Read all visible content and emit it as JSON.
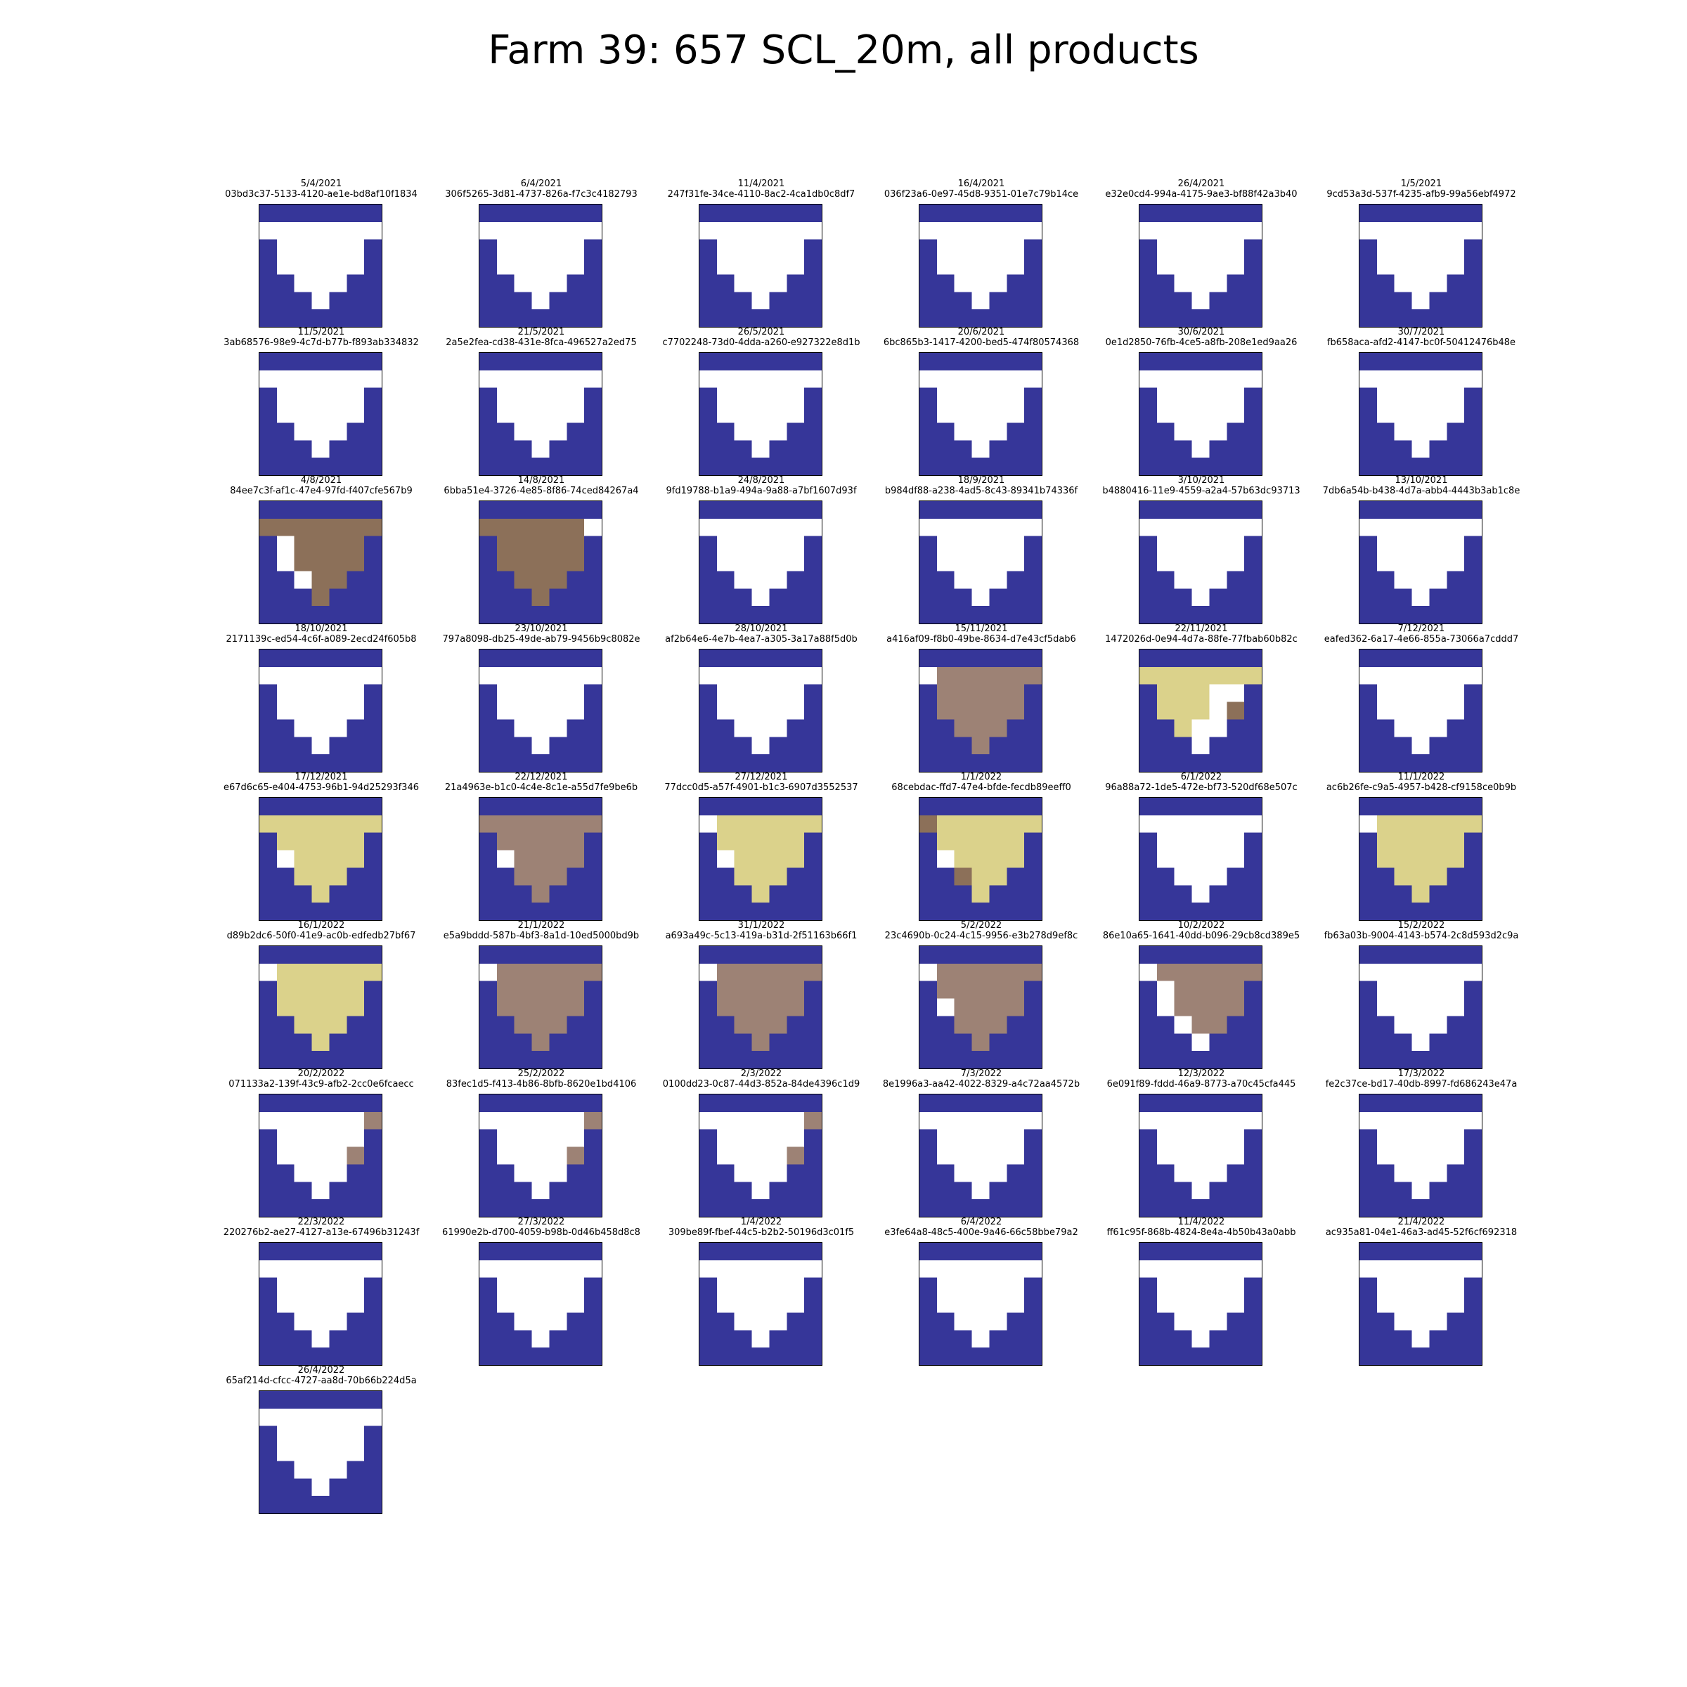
{
  "title": "Farm 39: 657 SCL_20m, all products",
  "chart_data": {
    "type": "heatmap",
    "title": "Farm 39: 657 SCL_20m, all products",
    "grid": "7x7",
    "colors": {
      "N": "#363699",
      "W": "#ffffff",
      "B": "#8c7059",
      "T": "#9d8275",
      "Y": "#dbd28b"
    },
    "panels": [
      {
        "date": "5/4/2021",
        "id": "03bd3c37-5133-4120-ae1e-bd8af10f1834",
        "pixels": [
          "NNNNNNN",
          "WWWWWWW",
          "NWWWWWN",
          "NWWWWWN",
          "NNWWWNN",
          "NNNWNNN",
          "NNNNNNN"
        ]
      },
      {
        "date": "6/4/2021",
        "id": "306f5265-3d81-4737-826a-f7c3c4182793",
        "pixels": [
          "NNNNNNN",
          "WWWWWWW",
          "NWWWWWN",
          "NWWWWWN",
          "NNWWWNN",
          "NNNWNNN",
          "NNNNNNN"
        ]
      },
      {
        "date": "11/4/2021",
        "id": "247f31fe-34ce-4110-8ac2-4ca1db0c8df7",
        "pixels": [
          "NNNNNNN",
          "WWWWWWW",
          "NWWWWWN",
          "NWWWWWN",
          "NNWWWNN",
          "NNNWNNN",
          "NNNNNNN"
        ]
      },
      {
        "date": "16/4/2021",
        "id": "036f23a6-0e97-45d8-9351-01e7c79b14ce",
        "pixels": [
          "NNNNNNN",
          "WWWWWWW",
          "NWWWWWN",
          "NWWWWWN",
          "NNWWWNN",
          "NNNWNNN",
          "NNNNNNN"
        ]
      },
      {
        "date": "26/4/2021",
        "id": "e32e0cd4-994a-4175-9ae3-bf88f42a3b40",
        "pixels": [
          "NNNNNNN",
          "WWWWWWW",
          "NWWWWWN",
          "NWWWWWN",
          "NNWWWNN",
          "NNNWNNN",
          "NNNNNNN"
        ]
      },
      {
        "date": "1/5/2021",
        "id": "9cd53a3d-537f-4235-afb9-99a56ebf4972",
        "pixels": [
          "NNNNNNN",
          "WWWWWWW",
          "NWWWWWN",
          "NWWWWWN",
          "NNWWWNN",
          "NNNWNNN",
          "NNNNNNN"
        ]
      },
      {
        "date": "11/5/2021",
        "id": "3ab68576-98e9-4c7d-b77b-f893ab334832",
        "pixels": [
          "NNNNNNN",
          "WWWWWWW",
          "NWWWWWN",
          "NWWWWWN",
          "NNWWWNN",
          "NNNWNNN",
          "NNNNNNN"
        ]
      },
      {
        "date": "21/5/2021",
        "id": "2a5e2fea-cd38-431e-8fca-496527a2ed75",
        "pixels": [
          "NNNNNNN",
          "WWWWWWW",
          "NWWWWWN",
          "NWWWWWN",
          "NNWWWNN",
          "NNNWNNN",
          "NNNNNNN"
        ]
      },
      {
        "date": "26/5/2021",
        "id": "c7702248-73d0-4dda-a260-e927322e8d1b",
        "pixels": [
          "NNNNNNN",
          "WWWWWWW",
          "NWWWWWN",
          "NWWWWWN",
          "NNWWWNN",
          "NNNWNNN",
          "NNNNNNN"
        ]
      },
      {
        "date": "20/6/2021",
        "id": "6bc865b3-1417-4200-bed5-474f80574368",
        "pixels": [
          "NNNNNNN",
          "WWWWWWW",
          "NWWWWWN",
          "NWWWWWN",
          "NNWWWNN",
          "NNNWNNN",
          "NNNNNNN"
        ]
      },
      {
        "date": "30/6/2021",
        "id": "0e1d2850-76fb-4ce5-a8fb-208e1ed9aa26",
        "pixels": [
          "NNNNNNN",
          "WWWWWWW",
          "NWWWWWN",
          "NWWWWWN",
          "NNWWWNN",
          "NNNWNNN",
          "NNNNNNN"
        ]
      },
      {
        "date": "30/7/2021",
        "id": "fb658aca-afd2-4147-bc0f-50412476b48e",
        "pixels": [
          "NNNNNNN",
          "WWWWWWW",
          "NWWWWWN",
          "NWWWWWN",
          "NNWWWNN",
          "NNNWNNN",
          "NNNNNNN"
        ]
      },
      {
        "date": "4/8/2021",
        "id": "84ee7c3f-af1c-47e4-97fd-f407cfe567b9",
        "pixels": [
          "NNNNNNN",
          "BBBBBBB",
          "NWBBBBN",
          "NWBBBBN",
          "NNWBBNN",
          "NNNBNNN",
          "NNNNNNN"
        ]
      },
      {
        "date": "14/8/2021",
        "id": "6bba51e4-3726-4e85-8f86-74ced84267a4",
        "pixels": [
          "NNNNNNN",
          "BBBBBBW",
          "NBBBBBN",
          "NBBBBBN",
          "NNBBBNN",
          "NNNBNNN",
          "NNNNNNN"
        ]
      },
      {
        "date": "24/8/2021",
        "id": "9fd19788-b1a9-494a-9a88-a7bf1607d93f",
        "pixels": [
          "NNNNNNN",
          "WWWWWWW",
          "NWWWWWN",
          "NWWWWWN",
          "NNWWWNN",
          "NNNWNNN",
          "NNNNNNN"
        ]
      },
      {
        "date": "18/9/2021",
        "id": "b984df88-a238-4ad5-8c43-89341b74336f",
        "pixels": [
          "NNNNNNN",
          "WWWWWWW",
          "NWWWWWN",
          "NWWWWWN",
          "NNWWWNN",
          "NNNWNNN",
          "NNNNNNN"
        ]
      },
      {
        "date": "3/10/2021",
        "id": "b4880416-11e9-4559-a2a4-57b63dc93713",
        "pixels": [
          "NNNNNNN",
          "WWWWWWW",
          "NWWWWWN",
          "NWWWWWN",
          "NNWWWNN",
          "NNNWNNN",
          "NNNNNNN"
        ]
      },
      {
        "date": "13/10/2021",
        "id": "7db6a54b-b438-4d7a-abb4-4443b3ab1c8e",
        "pixels": [
          "NNNNNNN",
          "WWWWWWW",
          "NWWWWWN",
          "NWWWWWN",
          "NNWWWNN",
          "NNNWNNN",
          "NNNNNNN"
        ]
      },
      {
        "date": "18/10/2021",
        "id": "2171139c-ed54-4c6f-a089-2ecd24f605b8",
        "pixels": [
          "NNNNNNN",
          "WWWWWWW",
          "NWWWWWN",
          "NWWWWWN",
          "NNWWWNN",
          "NNNWNNN",
          "NNNNNNN"
        ]
      },
      {
        "date": "23/10/2021",
        "id": "797a8098-db25-49de-ab79-9456b9c8082e",
        "pixels": [
          "NNNNNNN",
          "WWWWWWW",
          "NWWWWWN",
          "NWWWWWN",
          "NNWWWNN",
          "NNNWNNN",
          "NNNNNNN"
        ]
      },
      {
        "date": "28/10/2021",
        "id": "af2b64e6-4e7b-4ea7-a305-3a17a88f5d0b",
        "pixels": [
          "NNNNNNN",
          "WWWWWWW",
          "NWWWWWN",
          "NWWWWWN",
          "NNWWWNN",
          "NNNWNNN",
          "NNNNNNN"
        ]
      },
      {
        "date": "15/11/2021",
        "id": "a416af09-f8b0-49be-8634-d7e43cf5dab6",
        "pixels": [
          "NNNNNNN",
          "WTTTTTT",
          "NTTTTTN",
          "NTTTTTN",
          "NNTTTNN",
          "NNNTNNN",
          "NNNNNNN"
        ]
      },
      {
        "date": "22/11/2021",
        "id": "1472026d-0e94-4d7a-88fe-77fbab60b82c",
        "pixels": [
          "NNNNNNN",
          "YYYYYYY",
          "NYYYWWN",
          "NYYYWBN",
          "NNYWWNN",
          "NNNWNNN",
          "NNNNNNN"
        ]
      },
      {
        "date": "7/12/2021",
        "id": "eafed362-6a17-4e66-855a-73066a7cddd7",
        "pixels": [
          "NNNNNNN",
          "WWWWWWW",
          "NWWWWWN",
          "NWWWWWN",
          "NNWWWNN",
          "NNNWNNN",
          "NNNNNNN"
        ]
      },
      {
        "date": "17/12/2021",
        "id": "e67d6c65-e404-4753-96b1-94d25293f346",
        "pixels": [
          "NNNNNNN",
          "YYYYYYY",
          "NYYYYYN",
          "NWYYYYN",
          "NNYYYNN",
          "NNNYNNN",
          "NNNNNNN"
        ]
      },
      {
        "date": "22/12/2021",
        "id": "21a4963e-b1c0-4c4e-8c1e-a55d7fe9be6b",
        "pixels": [
          "NNNNNNN",
          "TTTTTTT",
          "NTTTTTN",
          "NWTTTTN",
          "NNTTTNN",
          "NNNTNNN",
          "NNNNNNN"
        ]
      },
      {
        "date": "27/12/2021",
        "id": "77dcc0d5-a57f-4901-b1c3-6907d3552537",
        "pixels": [
          "NNNNNNN",
          "WYYYYYY",
          "NYYYYYN",
          "NWYYYYN",
          "NNYYYNN",
          "NNNYNNN",
          "NNNNNNN"
        ]
      },
      {
        "date": "1/1/2022",
        "id": "68cebdac-ffd7-47e4-bfde-fecdb89eeff0",
        "pixels": [
          "NNNNNNN",
          "BYYYYYY",
          "NYYYYYN",
          "NWYYYYN",
          "NNBYYNN",
          "NNNYNNN",
          "NNNNNNN"
        ]
      },
      {
        "date": "6/1/2022",
        "id": "96a88a72-1de5-472e-bf73-520df68e507c",
        "pixels": [
          "NNNNNNN",
          "WWWWWWW",
          "NWWWWWN",
          "NWWWWWN",
          "NNWWWNN",
          "NNNWNNN",
          "NNNNNNN"
        ]
      },
      {
        "date": "11/1/2022",
        "id": "ac6b26fe-c9a5-4957-b428-cf9158ce0b9b",
        "pixels": [
          "NNNNNNN",
          "WYYYYYY",
          "NYYYYYN",
          "NYYYYYN",
          "NNYYYNN",
          "NNNYNNN",
          "NNNNNNN"
        ]
      },
      {
        "date": "16/1/2022",
        "id": "d89b2dc6-50f0-41e9-ac0b-edfedb27bf67",
        "pixels": [
          "NNNNNNN",
          "WYYYYYY",
          "NYYYYYN",
          "NYYYYYN",
          "NNYYYNN",
          "NNNYNNN",
          "NNNNNNN"
        ]
      },
      {
        "date": "21/1/2022",
        "id": "e5a9bddd-587b-4bf3-8a1d-10ed5000bd9b",
        "pixels": [
          "NNNNNNN",
          "WTTTTTT",
          "NTTTTTN",
          "NTTTTTN",
          "NNTTTNN",
          "NNNTNNN",
          "NNNNNNN"
        ]
      },
      {
        "date": "31/1/2022",
        "id": "a693a49c-5c13-419a-b31d-2f51163b66f1",
        "pixels": [
          "NNNNNNN",
          "WTTTTTT",
          "NTTTTTN",
          "NTTTTTN",
          "NNTTTNN",
          "NNNTNNN",
          "NNNNNNN"
        ]
      },
      {
        "date": "5/2/2022",
        "id": "23c4690b-0c24-4c15-9956-e3b278d9ef8c",
        "pixels": [
          "NNNNNNN",
          "WTTTTTT",
          "NTTTTTN",
          "NWTTTTN",
          "NNTTTNN",
          "NNNTNNN",
          "NNNNNNN"
        ]
      },
      {
        "date": "10/2/2022",
        "id": "86e10a65-1641-40dd-b096-29cb8cd389e5",
        "pixels": [
          "NNNNNNN",
          "WTTTTTT",
          "NWTTTTN",
          "NWTTTTN",
          "NNWTTNN",
          "NNNWNNN",
          "NNNNNNN"
        ]
      },
      {
        "date": "15/2/2022",
        "id": "fb63a03b-9004-4143-b574-2c8d593d2c9a",
        "pixels": [
          "NNNNNNN",
          "WWWWWWW",
          "NWWWWWN",
          "NWWWWWN",
          "NNWWWNN",
          "NNNWNNN",
          "NNNNNNN"
        ]
      },
      {
        "date": "20/2/2022",
        "id": "071133a2-139f-43c9-afb2-2cc0e6fcaecc",
        "pixels": [
          "NNNNNNN",
          "WWWWWWT",
          "NWWWWWN",
          "NWWWWTN",
          "NNWWWNN",
          "NNNWNNN",
          "NNNNNNN"
        ]
      },
      {
        "date": "25/2/2022",
        "id": "83fec1d5-f413-4b86-8bfb-8620e1bd4106",
        "pixels": [
          "NNNNNNN",
          "WWWWWWT",
          "NWWWWWN",
          "NWWWWTN",
          "NNWWWNN",
          "NNNWNNN",
          "NNNNNNN"
        ]
      },
      {
        "date": "2/3/2022",
        "id": "0100dd23-0c87-44d3-852a-84de4396c1d9",
        "pixels": [
          "NNNNNNN",
          "WWWWWWT",
          "NWWWWWN",
          "NWWWWTN",
          "NNWWWNN",
          "NNNWNNN",
          "NNNNNNN"
        ]
      },
      {
        "date": "7/3/2022",
        "id": "8e1996a3-aa42-4022-8329-a4c72aa4572b",
        "pixels": [
          "NNNNNNN",
          "WWWWWWW",
          "NWWWWWN",
          "NWWWWWN",
          "NNWWWNN",
          "NNNWNNN",
          "NNNNNNN"
        ]
      },
      {
        "date": "12/3/2022",
        "id": "6e091f89-fddd-46a9-8773-a70c45cfa445",
        "pixels": [
          "NNNNNNN",
          "WWWWWWW",
          "NWWWWWN",
          "NWWWWWN",
          "NNWWWNN",
          "NNNWNNN",
          "NNNNNNN"
        ]
      },
      {
        "date": "17/3/2022",
        "id": "fe2c37ce-bd17-40db-8997-fd686243e47a",
        "pixels": [
          "NNNNNNN",
          "WWWWWWW",
          "NWWWWWN",
          "NWWWWWN",
          "NNWWWNN",
          "NNNWNNN",
          "NNNNNNN"
        ]
      },
      {
        "date": "22/3/2022",
        "id": "220276b2-ae27-4127-a13e-67496b31243f",
        "pixels": [
          "NNNNNNN",
          "WWWWWWW",
          "NWWWWWN",
          "NWWWWWN",
          "NNWWWNN",
          "NNNWNNN",
          "NNNNNNN"
        ]
      },
      {
        "date": "27/3/2022",
        "id": "61990e2b-d700-4059-b98b-0d46b458d8c8",
        "pixels": [
          "NNNNNNN",
          "WWWWWWW",
          "NWWWWWN",
          "NWWWWWN",
          "NNWWWNN",
          "NNNWNNN",
          "NNNNNNN"
        ]
      },
      {
        "date": "1/4/2022",
        "id": "309be89f-fbef-44c5-b2b2-50196d3c01f5",
        "pixels": [
          "NNNNNNN",
          "WWWWWWW",
          "NWWWWWN",
          "NWWWWWN",
          "NNWWWNN",
          "NNNWNNN",
          "NNNNNNN"
        ]
      },
      {
        "date": "6/4/2022",
        "id": "e3fe64a8-48c5-400e-9a46-66c58bbe79a2",
        "pixels": [
          "NNNNNNN",
          "WWWWWWW",
          "NWWWWWN",
          "NWWWWWN",
          "NNWWWNN",
          "NNNWNNN",
          "NNNNNNN"
        ]
      },
      {
        "date": "11/4/2022",
        "id": "ff61c95f-868b-4824-8e4a-4b50b43a0abb",
        "pixels": [
          "NNNNNNN",
          "WWWWWWW",
          "NWWWWWN",
          "NWWWWWN",
          "NNWWWNN",
          "NNNWNNN",
          "NNNNNNN"
        ]
      },
      {
        "date": "21/4/2022",
        "id": "ac935a81-04e1-46a3-ad45-52f6cf692318",
        "pixels": [
          "NNNNNNN",
          "WWWWWWW",
          "NWWWWWN",
          "NWWWWWN",
          "NNWWWNN",
          "NNNWNNN",
          "NNNNNNN"
        ]
      },
      {
        "date": "26/4/2022",
        "id": "65af214d-cfcc-4727-aa8d-70b66b224d5a",
        "pixels": [
          "NNNNNNN",
          "WWWWWWW",
          "NWWWWWN",
          "NWWWWWN",
          "NNWWWNN",
          "NNNWNNN",
          "NNNNNNN"
        ]
      }
    ]
  }
}
